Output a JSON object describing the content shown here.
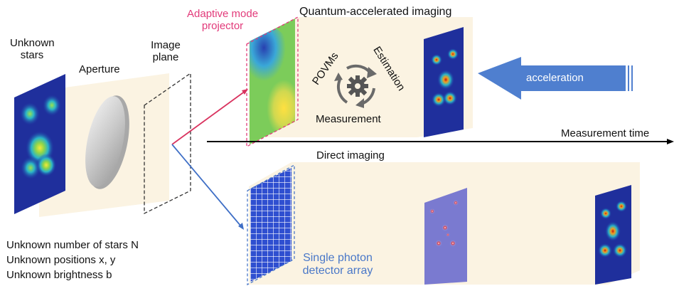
{
  "labels": {
    "unknown_stars": [
      "Unknown",
      "stars"
    ],
    "aperture": "Aperture",
    "image_plane": [
      "Image",
      "plane"
    ],
    "adaptive_mode_projector": [
      "Adaptive mode",
      "projector"
    ],
    "quantum_title": "Quantum-accelerated imaging",
    "povms": "POVMs",
    "estimation": "Estimation",
    "measurement": "Measurement",
    "acceleration": "acceleration",
    "measurement_time": "Measurement time",
    "direct_imaging": "Direct imaging",
    "single_photon_detector": [
      "Single photon",
      "detector array"
    ]
  },
  "notes": [
    "Unknown number of stars N",
    "Unknown positions x, y",
    "Unknown brightness b"
  ],
  "colors": {
    "panel_fill": "#fbf3e2",
    "pink": "#e23a7a",
    "blue_text": "#4a78c8",
    "arrow_blue": "#4f7fcf",
    "red_line": "#d9335f",
    "blue_line": "#3f6fc6"
  },
  "icons": [
    "gear-icon",
    "cycle-arrows-icon"
  ]
}
